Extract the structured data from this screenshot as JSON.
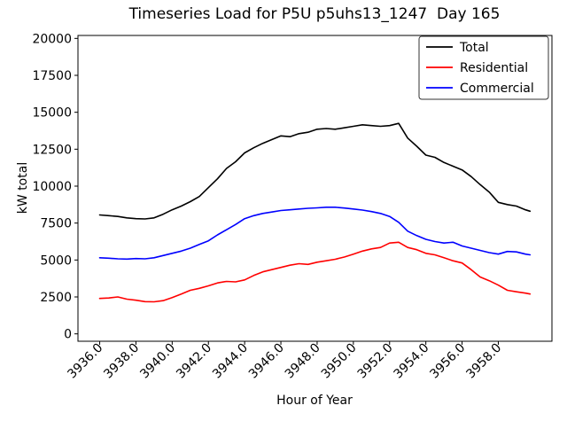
{
  "chart_data": {
    "type": "line",
    "title": "Timeseries Load for P5U p5uhs13_1247  Day 165",
    "xlabel": "Hour of Year",
    "ylabel": "kW total",
    "grid": false,
    "xlim": [
      3934.8,
      3960.96
    ],
    "ylim": [
      -500,
      20200
    ],
    "x_ticks": [
      3936,
      3938,
      3940,
      3942,
      3944,
      3946,
      3948,
      3950,
      3952,
      3954,
      3956,
      3958
    ],
    "x_tick_labels": [
      "3936.0",
      "3938.0",
      "3940.0",
      "3942.0",
      "3944.0",
      "3946.0",
      "3948.0",
      "3950.0",
      "3952.0",
      "3954.0",
      "3956.0",
      "3958.0"
    ],
    "y_ticks": [
      0,
      2500,
      5000,
      7500,
      10000,
      12500,
      15000,
      17500,
      20000
    ],
    "y_tick_labels": [
      "0",
      "2500",
      "5000",
      "7500",
      "10000",
      "12500",
      "15000",
      "17500",
      "20000"
    ],
    "legend": {
      "position": "upper right",
      "entries": [
        "Total",
        "Residential",
        "Commercial"
      ]
    },
    "x": [
      3936,
      3936.5,
      3937,
      3937.5,
      3938,
      3938.5,
      3939,
      3939.5,
      3940,
      3940.5,
      3941,
      3941.5,
      3942,
      3942.5,
      3943,
      3943.5,
      3944,
      3944.5,
      3945,
      3945.5,
      3946,
      3946.5,
      3947,
      3947.5,
      3948,
      3948.5,
      3949,
      3949.5,
      3950,
      3950.5,
      3951,
      3951.5,
      3952,
      3952.5,
      3953,
      3953.5,
      3954,
      3954.5,
      3955,
      3955.5,
      3956,
      3956.5,
      3957,
      3957.5,
      3958,
      3958.5,
      3959,
      3959.5,
      3959.75
    ],
    "series": [
      {
        "name": "Total",
        "color": "#000000",
        "values": [
          8050,
          8000,
          7950,
          7850,
          7800,
          7780,
          7850,
          8100,
          8400,
          8650,
          8950,
          9300,
          9900,
          10500,
          11200,
          11650,
          12250,
          12600,
          12900,
          13150,
          13400,
          13350,
          13550,
          13650,
          13850,
          13900,
          13850,
          13950,
          14050,
          14150,
          14100,
          14050,
          14100,
          14250,
          13250,
          12700,
          12100,
          11950,
          11600,
          11350,
          11100,
          10650,
          10100,
          9600,
          8900,
          8750,
          8650,
          8400,
          8300
        ]
      },
      {
        "name": "Residential",
        "color": "#ff0000",
        "values": [
          2400,
          2430,
          2500,
          2350,
          2280,
          2180,
          2170,
          2250,
          2450,
          2700,
          2950,
          3080,
          3250,
          3450,
          3550,
          3520,
          3650,
          3950,
          4200,
          4350,
          4500,
          4650,
          4750,
          4700,
          4850,
          4950,
          5050,
          5200,
          5400,
          5600,
          5750,
          5850,
          6150,
          6200,
          5850,
          5700,
          5450,
          5350,
          5150,
          4950,
          4800,
          4350,
          3850,
          3600,
          3300,
          2950,
          2850,
          2760,
          2700
        ]
      },
      {
        "name": "Commercial",
        "color": "#0000ff",
        "values": [
          5150,
          5120,
          5080,
          5060,
          5100,
          5080,
          5150,
          5300,
          5450,
          5600,
          5800,
          6050,
          6300,
          6700,
          7050,
          7400,
          7800,
          8000,
          8150,
          8250,
          8350,
          8400,
          8450,
          8500,
          8530,
          8570,
          8570,
          8520,
          8450,
          8380,
          8280,
          8150,
          7950,
          7550,
          6950,
          6650,
          6400,
          6250,
          6150,
          6200,
          5950,
          5800,
          5650,
          5500,
          5400,
          5580,
          5550,
          5400,
          5350
        ]
      }
    ]
  }
}
